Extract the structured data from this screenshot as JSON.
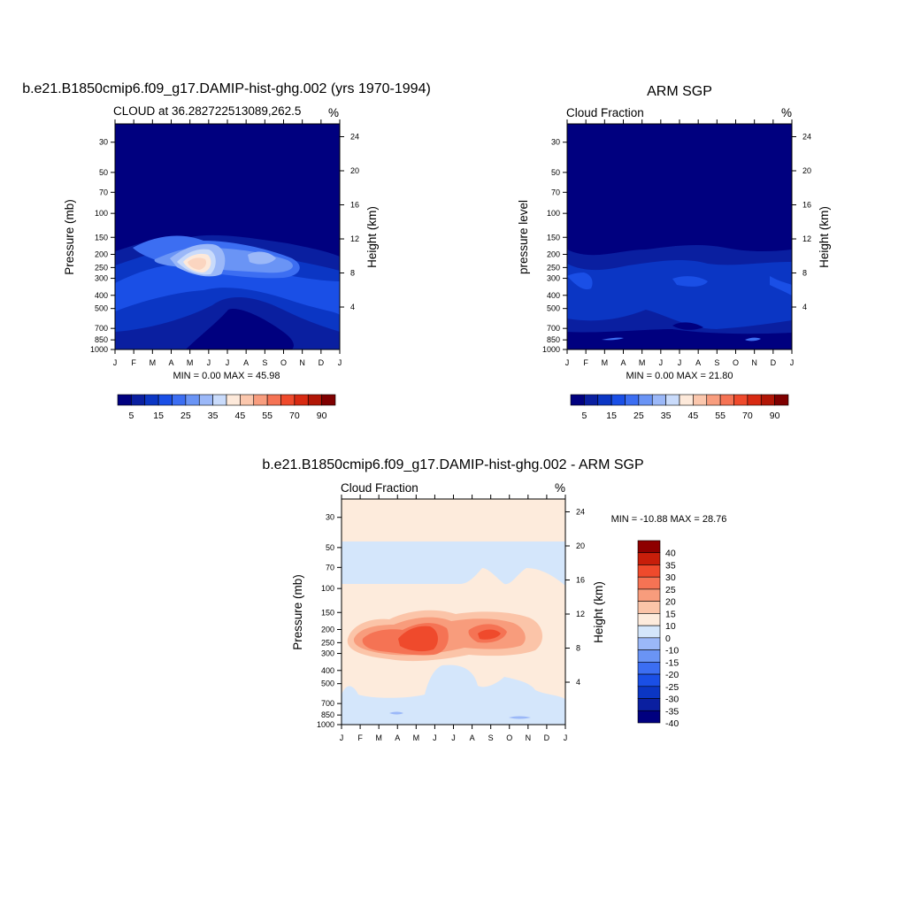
{
  "chart_data": [
    {
      "type": "heatmap",
      "title": "b.e21.B1850cmip6.f09_g17.DAMIP-hist-ghg.002 (yrs 1970-1994)",
      "left_label": "CLOUD at 36.282722513089,262.5",
      "right_label": "%",
      "ylabel": "Pressure (mb)",
      "ylabel_right": "Height (km)",
      "x_ticks": [
        "J",
        "F",
        "M",
        "A",
        "M",
        "J",
        "J",
        "A",
        "S",
        "O",
        "N",
        "D",
        "J"
      ],
      "y_ticks": [
        30,
        50,
        70,
        100,
        150,
        200,
        250,
        300,
        400,
        500,
        700,
        850,
        1000
      ],
      "y_ticks_right": [
        24,
        20,
        16,
        12,
        8,
        4
      ],
      "stats": "MIN =   0.00 MAX =  45.98",
      "colorbar_labels": [
        "5",
        "15",
        "25",
        "35",
        "45",
        "55",
        "70",
        "90"
      ],
      "min": 0.0,
      "max": 45.98
    },
    {
      "type": "heatmap",
      "title": "ARM SGP",
      "left_label": "Cloud Fraction",
      "right_label": "%",
      "ylabel": "pressure level",
      "ylabel_right": "Height (km)",
      "x_ticks": [
        "J",
        "F",
        "M",
        "A",
        "M",
        "J",
        "J",
        "A",
        "S",
        "O",
        "N",
        "D",
        "J"
      ],
      "y_ticks": [
        30,
        50,
        70,
        100,
        150,
        200,
        250,
        300,
        400,
        500,
        700,
        850,
        1000
      ],
      "y_ticks_right": [
        24,
        20,
        16,
        12,
        8,
        4
      ],
      "stats": "MIN =   0.00 MAX =  21.80",
      "colorbar_labels": [
        "5",
        "15",
        "25",
        "35",
        "45",
        "55",
        "70",
        "90"
      ],
      "min": 0.0,
      "max": 21.8
    },
    {
      "type": "heatmap",
      "title": "b.e21.B1850cmip6.f09_g17.DAMIP-hist-ghg.002 - ARM SGP",
      "left_label": "Cloud Fraction",
      "right_label": "%",
      "ylabel": "Pressure (mb)",
      "ylabel_right": "Height (km)",
      "x_ticks": [
        "J",
        "F",
        "M",
        "A",
        "M",
        "J",
        "J",
        "A",
        "S",
        "O",
        "N",
        "D",
        "J"
      ],
      "y_ticks": [
        30,
        50,
        70,
        100,
        150,
        200,
        250,
        300,
        400,
        500,
        700,
        850,
        1000
      ],
      "y_ticks_right": [
        24,
        20,
        16,
        12,
        8,
        4
      ],
      "stats": "MIN = -10.88 MAX =  28.76",
      "colorbar_labels": [
        "40",
        "35",
        "30",
        "25",
        "20",
        "15",
        "10",
        "0",
        "-10",
        "-15",
        "-20",
        "-25",
        "-30",
        "-35",
        "-40"
      ],
      "min": -10.88,
      "max": 28.76
    }
  ],
  "colors": {
    "seq": [
      "#00007f",
      "#0a1fa0",
      "#0b36c4",
      "#1a4fe6",
      "#3c6ef2",
      "#6a94f5",
      "#9bb8f8",
      "#c9dbfb",
      "#fde9da",
      "#fbc7ad",
      "#f89d7e",
      "#f57354",
      "#ef4a2c",
      "#d82a12",
      "#b11606",
      "#7f0000"
    ],
    "div": [
      "#00007f",
      "#0a1fa0",
      "#0b36c4",
      "#1a4fe6",
      "#3c6ef2",
      "#6a94f5",
      "#9bb8f8",
      "#d4e6fb",
      "#fdebdc",
      "#fbc4a8",
      "#f89c7c",
      "#f57354",
      "#ef4a2c",
      "#c81e0a",
      "#8e0000"
    ]
  }
}
